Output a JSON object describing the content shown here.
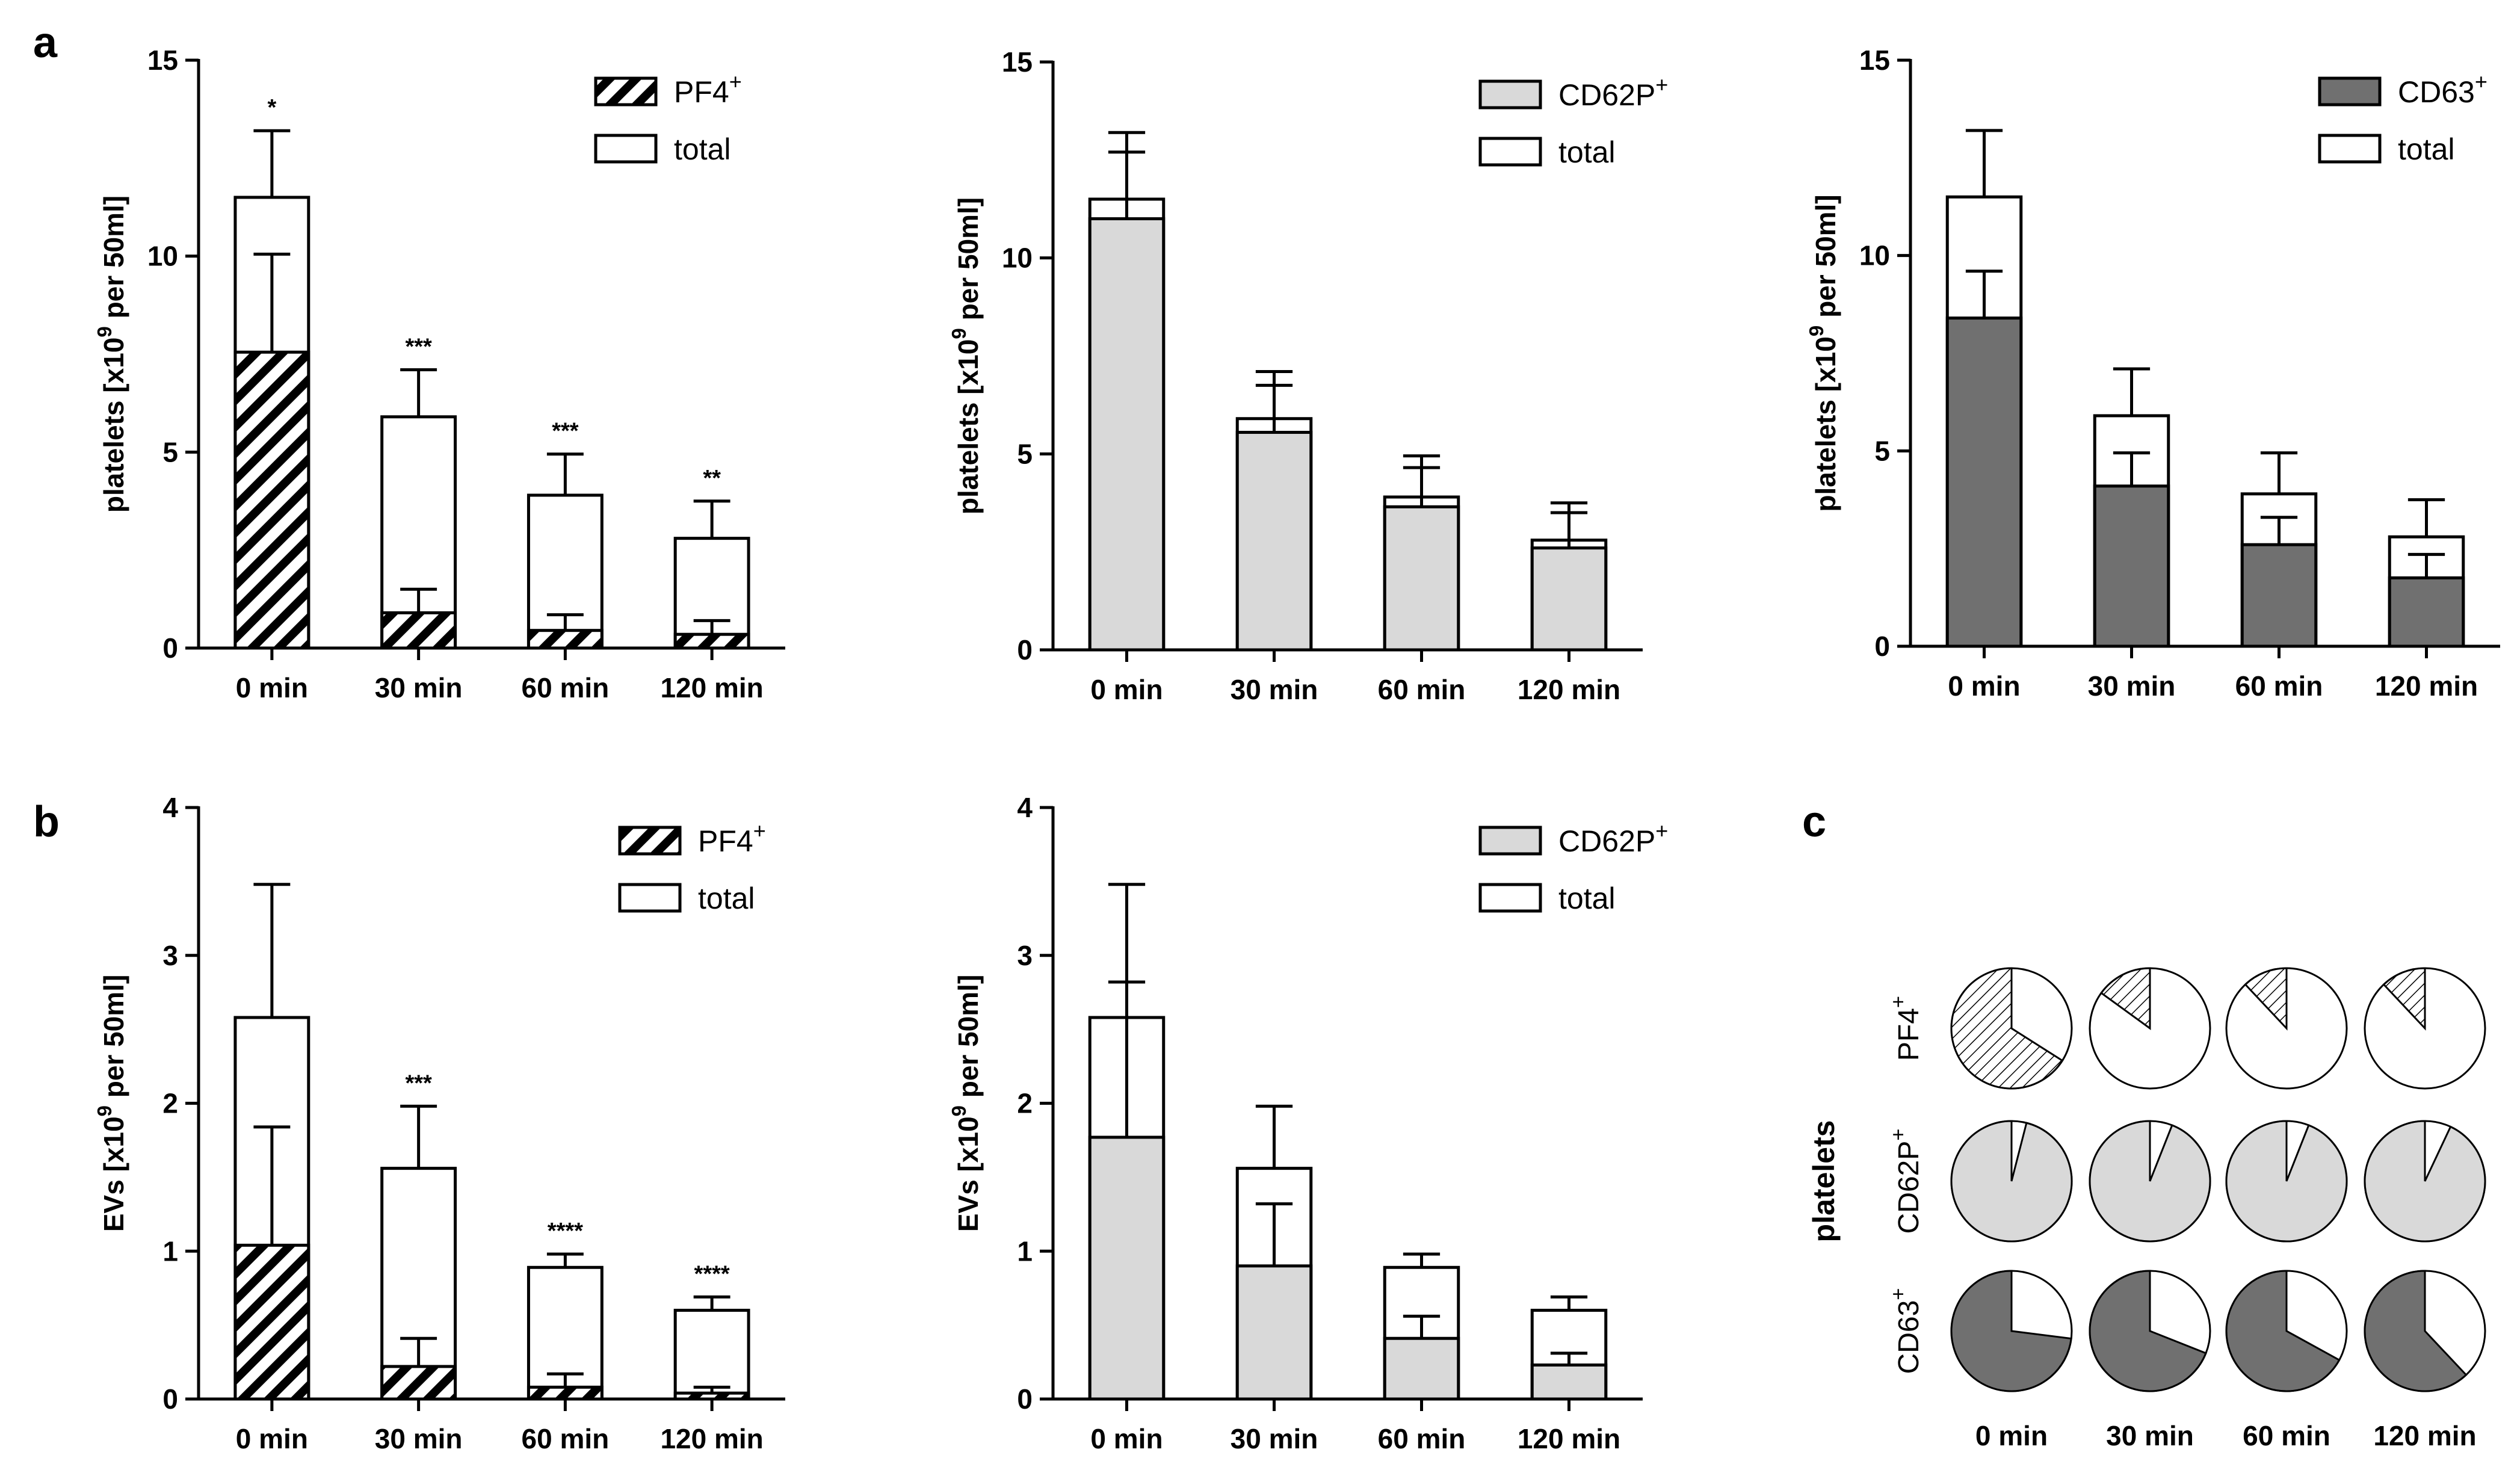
{
  "panel_labels": {
    "a": "a",
    "b": "b",
    "c": "c"
  },
  "colors": {
    "light_gray": "#d9d9d9",
    "dark_gray": "#707070",
    "white": "#ffffff",
    "black": "#000000"
  },
  "chart_data": [
    {
      "id": "a1",
      "type": "bar",
      "stacked_overlay": true,
      "categories": [
        "0 min",
        "30 min",
        "60 min",
        "120 min"
      ],
      "ylabel_parts": [
        "platelets [x10",
        "9",
        " per 50ml]"
      ],
      "ylim": [
        0,
        15
      ],
      "yticks": [
        "0",
        "5",
        "10",
        "15"
      ],
      "ytick_values": [
        0,
        5,
        10,
        15
      ],
      "legend": [
        {
          "base": "PF4",
          "sup": "+",
          "pattern": "hatch"
        },
        {
          "base": "total",
          "sup": "",
          "pattern": "white"
        }
      ],
      "series": [
        {
          "name": "total",
          "values": [
            11.5,
            5.9,
            3.9,
            2.8
          ],
          "errors": [
            1.7,
            1.2,
            1.05,
            0.95
          ]
        },
        {
          "name": "PF4+",
          "values": [
            7.55,
            0.9,
            0.45,
            0.35
          ],
          "errors": [
            2.5,
            0.6,
            0.4,
            0.35
          ]
        }
      ],
      "significance": [
        "*",
        "***",
        "***",
        "**"
      ]
    },
    {
      "id": "a2",
      "type": "bar",
      "stacked_overlay": true,
      "categories": [
        "0 min",
        "30 min",
        "60 min",
        "120 min"
      ],
      "ylabel_parts": [
        "platelets [x10",
        "9",
        " per 50ml]"
      ],
      "ylim": [
        0,
        15
      ],
      "yticks": [
        "0",
        "5",
        "10",
        "15"
      ],
      "ytick_values": [
        0,
        5,
        10,
        15
      ],
      "legend": [
        {
          "base": "CD62P",
          "sup": "+",
          "pattern": "light"
        },
        {
          "base": "total",
          "sup": "",
          "pattern": "white"
        }
      ],
      "series": [
        {
          "name": "total",
          "values": [
            11.5,
            5.9,
            3.9,
            2.8
          ],
          "errors": [
            1.7,
            1.2,
            1.05,
            0.95
          ]
        },
        {
          "name": "CD62P+",
          "values": [
            11.0,
            5.55,
            3.65,
            2.6
          ],
          "errors": [
            1.7,
            1.2,
            1.0,
            0.9
          ]
        }
      ],
      "significance": [
        "",
        "",
        "",
        ""
      ]
    },
    {
      "id": "a3",
      "type": "bar",
      "stacked_overlay": true,
      "categories": [
        "0 min",
        "30 min",
        "60 min",
        "120 min"
      ],
      "ylabel_parts": [
        "platelets [x10",
        "9",
        " per 50ml]"
      ],
      "ylim": [
        0,
        15
      ],
      "yticks": [
        "0",
        "5",
        "10",
        "15"
      ],
      "ytick_values": [
        0,
        5,
        10,
        15
      ],
      "legend": [
        {
          "base": "CD63",
          "sup": "+",
          "pattern": "dark"
        },
        {
          "base": "total",
          "sup": "",
          "pattern": "white"
        }
      ],
      "series": [
        {
          "name": "total",
          "values": [
            11.5,
            5.9,
            3.9,
            2.8
          ],
          "errors": [
            1.7,
            1.2,
            1.05,
            0.95
          ]
        },
        {
          "name": "CD63+",
          "values": [
            8.4,
            4.1,
            2.6,
            1.75
          ],
          "errors": [
            1.2,
            0.85,
            0.7,
            0.6
          ]
        }
      ],
      "significance": [
        "",
        "",
        "",
        ""
      ]
    },
    {
      "id": "b1",
      "type": "bar",
      "stacked_overlay": true,
      "categories": [
        "0 min",
        "30 min",
        "60 min",
        "120 min"
      ],
      "ylabel_parts": [
        "EVs [x10",
        "9",
        " per 50ml]"
      ],
      "ylim": [
        0,
        4
      ],
      "yticks": [
        "0",
        "1",
        "2",
        "3",
        "4"
      ],
      "ytick_values": [
        0,
        1,
        2,
        3,
        4
      ],
      "legend": [
        {
          "base": "PF4",
          "sup": "+",
          "pattern": "hatch"
        },
        {
          "base": "total",
          "sup": "",
          "pattern": "white"
        }
      ],
      "series": [
        {
          "name": "total",
          "values": [
            2.58,
            1.56,
            0.89,
            0.6
          ],
          "errors": [
            0.9,
            0.42,
            0.09,
            0.09
          ]
        },
        {
          "name": "PF4+",
          "values": [
            1.04,
            0.22,
            0.08,
            0.04
          ],
          "errors": [
            0.8,
            0.19,
            0.09,
            0.04
          ]
        }
      ],
      "significance": [
        "",
        "***",
        "****",
        "****"
      ]
    },
    {
      "id": "b2",
      "type": "bar",
      "stacked_overlay": true,
      "categories": [
        "0 min",
        "30 min",
        "60 min",
        "120 min"
      ],
      "ylabel_parts": [
        "EVs [x10",
        "9",
        " per 50ml]"
      ],
      "ylim": [
        0,
        4
      ],
      "yticks": [
        "0",
        "1",
        "2",
        "3",
        "4"
      ],
      "ytick_values": [
        0,
        1,
        2,
        3,
        4
      ],
      "legend": [
        {
          "base": "CD62P",
          "sup": "+",
          "pattern": "light"
        },
        {
          "base": "total",
          "sup": "",
          "pattern": "white"
        }
      ],
      "series": [
        {
          "name": "total",
          "values": [
            2.58,
            1.56,
            0.89,
            0.6
          ],
          "errors": [
            0.9,
            0.42,
            0.09,
            0.09
          ]
        },
        {
          "name": "CD62P+",
          "values": [
            1.77,
            0.9,
            0.41,
            0.23
          ],
          "errors": [
            1.05,
            0.42,
            0.15,
            0.08
          ]
        }
      ],
      "significance": [
        "",
        "",
        "",
        ""
      ]
    }
  ],
  "pie_panel": {
    "type": "pie",
    "group_label": "platelets",
    "columns": [
      "0 min",
      "30 min",
      "60 min",
      "120 min"
    ],
    "rows": [
      {
        "base": "PF4",
        "sup": "+",
        "pattern": "hatch",
        "fractions": [
          0.66,
          0.15,
          0.12,
          0.12
        ]
      },
      {
        "base": "CD62P",
        "sup": "+",
        "pattern": "light",
        "fractions": [
          0.96,
          0.94,
          0.94,
          0.93
        ]
      },
      {
        "base": "CD63",
        "sup": "+",
        "pattern": "dark",
        "fractions": [
          0.73,
          0.69,
          0.67,
          0.62
        ]
      }
    ]
  }
}
